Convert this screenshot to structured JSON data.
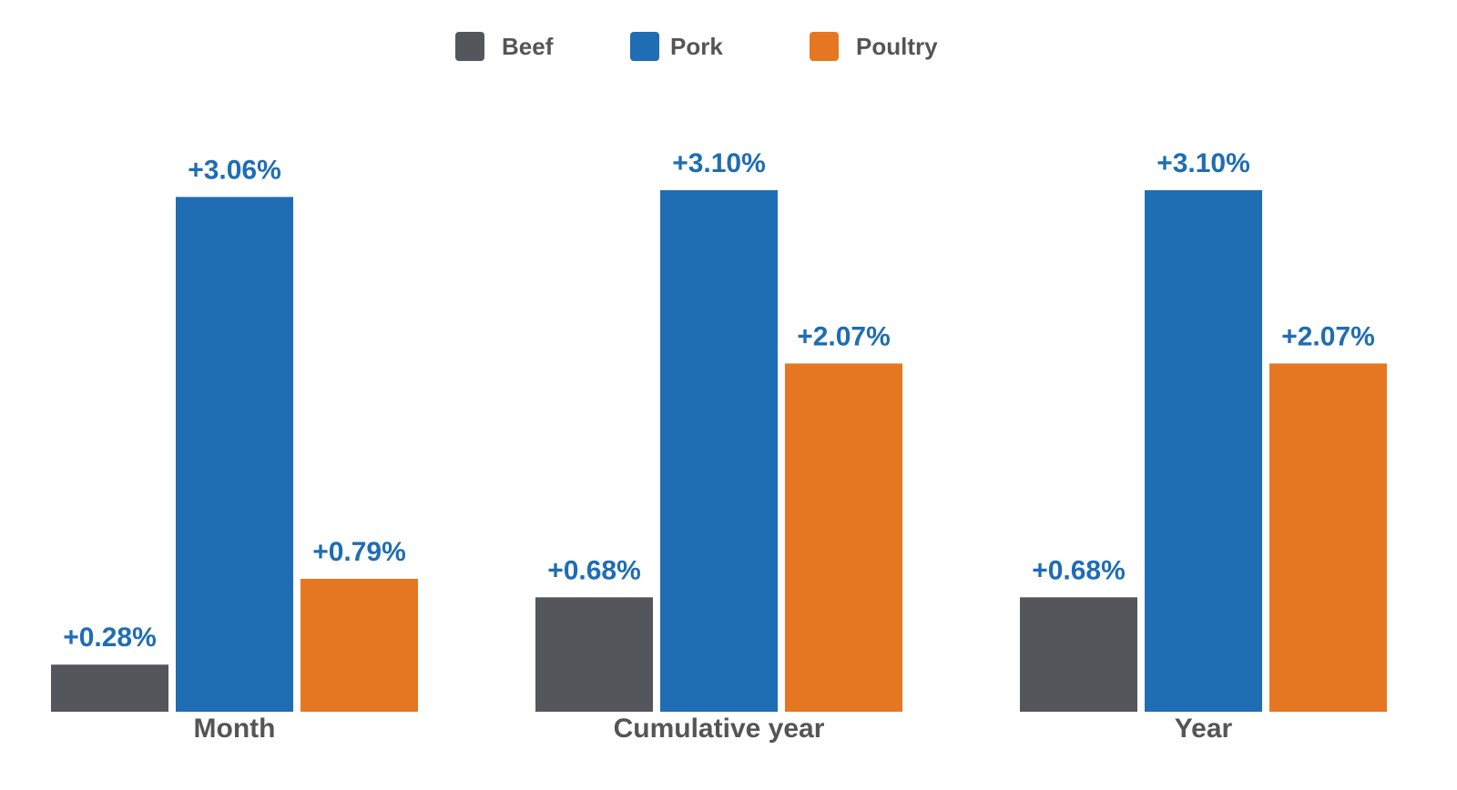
{
  "chart_data": {
    "type": "bar",
    "categories": [
      "Month",
      "Cumulative year",
      "Year"
    ],
    "series": [
      {
        "name": "Beef",
        "color": "#55565b",
        "values": [
          0.28,
          0.68,
          0.68
        ],
        "labels": [
          "+0.28%",
          "+0.68%",
          "+0.68%"
        ]
      },
      {
        "name": "Pork",
        "color": "#1f6db3",
        "values": [
          3.06,
          3.1,
          3.1
        ],
        "labels": [
          "+3.06%",
          "+3.10%",
          "+3.10%"
        ]
      },
      {
        "name": "Poultry",
        "color": "#e67722",
        "values": [
          0.79,
          2.07,
          2.07
        ],
        "labels": [
          "+0.79%",
          "+2.07%",
          "+2.07%"
        ]
      }
    ],
    "label_color": "#1f6db3",
    "ylim": [
      0,
      3.1
    ],
    "legend": "top-center",
    "grid": false
  }
}
